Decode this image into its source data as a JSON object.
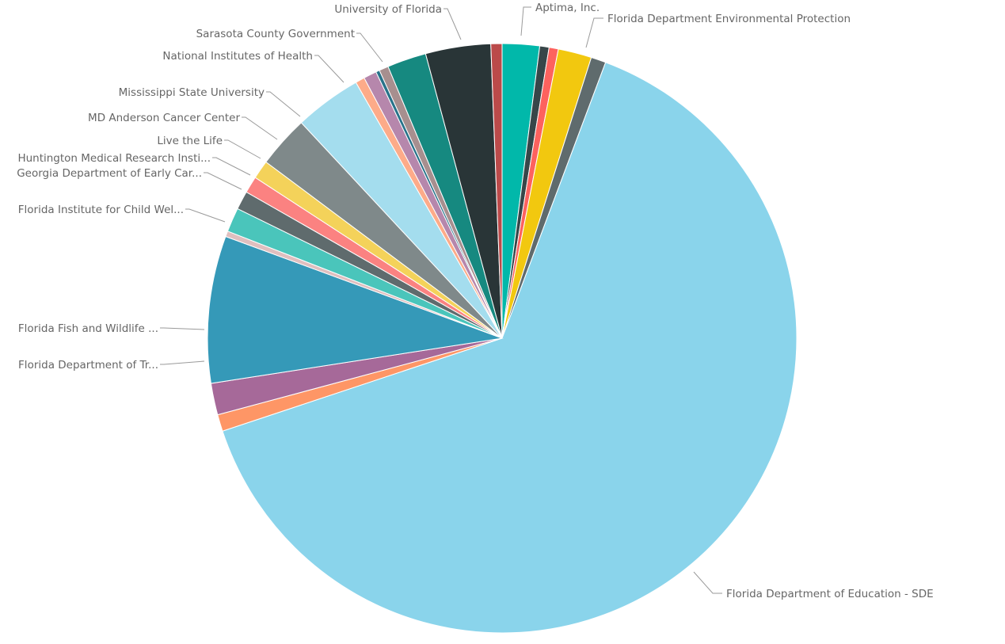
{
  "chart_data": {
    "type": "pie",
    "title": "",
    "start_angle_deg": 0,
    "direction": "clockwise",
    "slices": [
      {
        "label": "",
        "value": 2.0,
        "color": "#01b8aa"
      },
      {
        "label": "",
        "value": 0.5,
        "color": "#374649"
      },
      {
        "label": "Aptima, Inc.",
        "value": 0.5,
        "color": "#fd625e"
      },
      {
        "label": "",
        "value": 1.8,
        "color": "#f2c80f"
      },
      {
        "label": "Florida Department Environmental Protection",
        "value": 0.8,
        "color": "#5f6b6d"
      },
      {
        "label": "Florida Department of Education - SDE",
        "value": 62.9,
        "color": "#8ad4eb"
      },
      {
        "label": "Florida Department of Tr...",
        "value": 0.9,
        "color": "#fe9666"
      },
      {
        "label": "Florida Fish and Wildlife ...",
        "value": 1.7,
        "color": "#a66999"
      },
      {
        "label": "",
        "value": 7.9,
        "color": "#3599b8"
      },
      {
        "label": "Florida Institute for Child Wel...",
        "value": 0.3,
        "color": "#dfbfbf"
      },
      {
        "label": "Georgia Department of Early Car...",
        "value": 1.3,
        "color": "#4ac5bb"
      },
      {
        "label": "Huntington Medical Research Insti...",
        "value": 1.0,
        "color": "#5f6b6d"
      },
      {
        "label": "Live the Life",
        "value": 0.9,
        "color": "#fb8281"
      },
      {
        "label": "MD Anderson Cancer Center",
        "value": 1.0,
        "color": "#f4d25a"
      },
      {
        "label": "Mississippi State University",
        "value": 2.8,
        "color": "#7f898a"
      },
      {
        "label": "National Institutes of Health",
        "value": 3.6,
        "color": "#a4ddee"
      },
      {
        "label": "",
        "value": 0.5,
        "color": "#fdab89"
      },
      {
        "label": "Sarasota County Government",
        "value": 0.7,
        "color": "#b687ac"
      },
      {
        "label": "",
        "value": 0.2,
        "color": "#28738a"
      },
      {
        "label": "",
        "value": 0.5,
        "color": "#a78f8f"
      },
      {
        "label": "",
        "value": 2.1,
        "color": "#168980"
      },
      {
        "label": "University of Florida",
        "value": 3.5,
        "color": "#293537"
      },
      {
        "label": "",
        "value": 0.6,
        "color": "#bb4a4a"
      }
    ]
  }
}
